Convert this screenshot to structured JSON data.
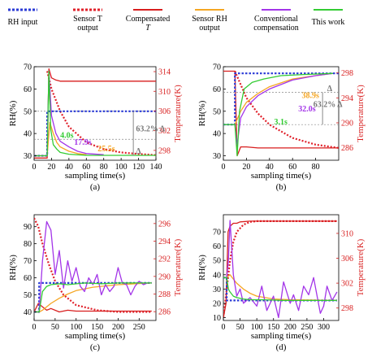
{
  "legend": [
    {
      "label": "RH input",
      "color": "#2b3bd6",
      "style": "dotted"
    },
    {
      "label": "Sensor T output",
      "color": "#e0202a",
      "style": "dotted",
      "italic_part": "T"
    },
    {
      "label": "Compensated T",
      "color": "#d81e1e",
      "style": "solid"
    },
    {
      "label": "Sensor RH output",
      "color": "#f5a623",
      "style": "solid"
    },
    {
      "label": "Conventional compensation",
      "color": "#a335e8",
      "style": "solid"
    },
    {
      "label": "This work",
      "color": "#33cc33",
      "style": "solid"
    }
  ],
  "chart_data": [
    {
      "type": "line",
      "panel": "a",
      "caption": "(a)",
      "xlabel": "sampling time(s)",
      "ylabel": "RH(%)",
      "y2label": "Temperature(K)",
      "xlim": [
        0,
        140
      ],
      "ylim": [
        28,
        70
      ],
      "y2lim": [
        296,
        315
      ],
      "xticks": [
        0,
        20,
        40,
        60,
        80,
        100,
        120,
        140
      ],
      "yticks": [
        30,
        40,
        50,
        60,
        70
      ],
      "y2ticks": [
        298,
        302,
        306,
        310,
        314
      ],
      "series": [
        {
          "key": "rh_input",
          "x": [
            0,
            15,
            15,
            140
          ],
          "y": [
            30,
            30,
            50,
            50
          ]
        },
        {
          "key": "sensor_t",
          "x": [
            15,
            20,
            30,
            40,
            60,
            80,
            100,
            120,
            140
          ],
          "y": [
            68,
            60,
            50,
            43,
            36,
            33,
            31.5,
            30.8,
            30.3
          ]
        },
        {
          "key": "comp_t",
          "x": [
            0,
            15,
            17,
            20,
            25,
            30,
            40,
            60,
            80,
            100,
            140
          ],
          "y": [
            29,
            29,
            69,
            65,
            64,
            63.5,
            63.5,
            63.5,
            63.5,
            63.5,
            63.5
          ]
        },
        {
          "key": "sensor_rh",
          "x": [
            0,
            15,
            18,
            22,
            26,
            30,
            40,
            50,
            60
          ],
          "y": [
            30,
            30,
            45,
            40,
            36,
            34,
            32,
            31,
            30.5
          ]
        },
        {
          "key": "conv",
          "x": [
            0,
            15,
            17,
            20,
            25,
            30,
            40,
            50,
            60,
            80
          ],
          "y": [
            30,
            30,
            68,
            48,
            40,
            36.5,
            34,
            32,
            31,
            30.5
          ]
        },
        {
          "key": "this_work",
          "x": [
            0,
            15,
            17,
            19,
            22,
            26,
            30,
            40,
            60,
            100,
            140
          ],
          "y": [
            30,
            30,
            68,
            42,
            35,
            33,
            31.5,
            30.7,
            30.2,
            30.2,
            30.2
          ]
        }
      ],
      "annotations": [
        {
          "text": "4.0s",
          "color": "#33cc33",
          "x": 30,
          "y": 38
        },
        {
          "text": "17.9s",
          "color": "#a335e8",
          "x": 46,
          "y": 35
        },
        {
          "text": "25.5s",
          "color": "#f5a623",
          "x": 73,
          "y": 32
        },
        {
          "text": "63.2% Δ",
          "color": "#777777",
          "x": 117,
          "y": 41
        },
        {
          "text": "Δ",
          "color": "#777777",
          "x": 117,
          "y": 31
        }
      ]
    },
    {
      "type": "line",
      "panel": "b",
      "caption": "(b)",
      "xlabel": "sampling time(s)",
      "ylabel": "RH(%)",
      "y2label": "Temperature(K)",
      "xlim": [
        0,
        100
      ],
      "ylim": [
        28,
        70
      ],
      "y2lim": [
        284,
        299
      ],
      "xticks": [
        0,
        20,
        40,
        60,
        80
      ],
      "yticks": [
        30,
        40,
        50,
        60,
        70
      ],
      "y2ticks": [
        286,
        290,
        294,
        298
      ],
      "series": [
        {
          "key": "rh_input",
          "x": [
            0,
            10,
            10,
            100
          ],
          "y": [
            44,
            44,
            67,
            67
          ]
        },
        {
          "key": "sensor_t",
          "x": [
            10,
            15,
            20,
            30,
            40,
            60,
            80,
            100
          ],
          "y": [
            68,
            62,
            56,
            49,
            44,
            38,
            35,
            33.5
          ]
        },
        {
          "key": "comp_t",
          "x": [
            0,
            10,
            12,
            15,
            20,
            30,
            50,
            100
          ],
          "y": [
            68,
            68,
            30,
            34,
            34,
            33.5,
            33.5,
            33.5
          ]
        },
        {
          "key": "sensor_rh",
          "x": [
            0,
            10,
            15,
            20,
            30,
            40,
            60,
            80,
            95
          ],
          "y": [
            44,
            44,
            50,
            54,
            58,
            61,
            64.5,
            66,
            67
          ]
        },
        {
          "key": "conv",
          "x": [
            0,
            10,
            12,
            15,
            20,
            30,
            40,
            60,
            80,
            95
          ],
          "y": [
            44,
            44,
            35,
            47,
            52,
            57,
            60,
            64,
            66,
            67
          ]
        },
        {
          "key": "this_work",
          "x": [
            0,
            10,
            12,
            14,
            18,
            25,
            35,
            50,
            70,
            95
          ],
          "y": [
            44,
            44,
            30,
            50,
            60,
            63,
            64.5,
            66,
            66.5,
            67
          ]
        }
      ],
      "annotations": [
        {
          "text": "3.1s",
          "color": "#33cc33",
          "x": 44,
          "y": 44
        },
        {
          "text": "32.0s",
          "color": "#a335e8",
          "x": 65,
          "y": 50
        },
        {
          "text": "38.9s",
          "color": "#f5a623",
          "x": 68,
          "y": 56
        },
        {
          "text": "63.2% Δ",
          "color": "#777777",
          "x": 78,
          "y": 52
        },
        {
          "text": "Δ",
          "color": "#777777",
          "x": 90,
          "y": 59
        }
      ]
    },
    {
      "type": "line",
      "panel": "c",
      "caption": "(c)",
      "xlabel": "sampling time(s)",
      "ylabel": "RH(%)",
      "y2label": "Temperature(K)",
      "xlim": [
        0,
        290
      ],
      "ylim": [
        35,
        97
      ],
      "y2lim": [
        285,
        297
      ],
      "xticks": [
        0,
        50,
        100,
        150,
        200,
        250
      ],
      "yticks": [
        40,
        50,
        60,
        70,
        80,
        90
      ],
      "y2ticks": [
        286,
        288,
        290,
        292,
        294,
        296
      ],
      "series": [
        {
          "key": "rh_input",
          "x": [
            0,
            12,
            12,
            280
          ],
          "y": [
            40,
            40,
            57,
            57
          ]
        },
        {
          "key": "sensor_t",
          "x": [
            0,
            10,
            20,
            35,
            50,
            70,
            100,
            150,
            200,
            280
          ],
          "y": [
            95,
            90,
            80,
            68,
            58,
            50,
            44,
            41,
            40,
            40
          ]
        },
        {
          "key": "comp_t",
          "x": [
            0,
            10,
            20,
            30,
            40,
            60,
            80,
            100,
            150,
            200,
            280
          ],
          "y": [
            40,
            45,
            43,
            41,
            42,
            40,
            41,
            40.5,
            40.5,
            40.5,
            40.5
          ]
        },
        {
          "key": "sensor_rh",
          "x": [
            0,
            12,
            20,
            40,
            60,
            80,
            100,
            140,
            200,
            280
          ],
          "y": [
            40,
            40,
            41,
            45,
            48,
            50.5,
            52.5,
            54.5,
            56,
            57
          ]
        },
        {
          "key": "conv",
          "x": [
            0,
            12,
            20,
            30,
            40,
            50,
            60,
            70,
            80,
            90,
            100,
            110,
            120,
            130,
            140,
            150,
            160,
            170,
            180,
            190,
            200,
            210,
            220,
            230,
            240,
            250,
            260,
            270,
            280
          ],
          "y": [
            40,
            40,
            70,
            93,
            88,
            62,
            76,
            54,
            70,
            58,
            66,
            55,
            52,
            60,
            56,
            62,
            50,
            56,
            52,
            55,
            66,
            57,
            56,
            50,
            55,
            58,
            56,
            57,
            57
          ]
        },
        {
          "key": "this_work",
          "x": [
            0,
            12,
            20,
            30,
            40,
            60,
            80,
            120,
            160,
            200,
            240,
            280
          ],
          "y": [
            40,
            40,
            52,
            55,
            56,
            56.5,
            56,
            57,
            56.5,
            57,
            57,
            57
          ]
        }
      ],
      "annotations": []
    },
    {
      "type": "line",
      "panel": "d",
      "caption": "(d)",
      "xlabel": "sampling time(s)",
      "ylabel": "RH(%)",
      "y2label": "Temperature(K)",
      "xlim": [
        0,
        345
      ],
      "ylim": [
        8,
        82
      ],
      "y2lim": [
        296,
        313
      ],
      "xticks": [
        0,
        50,
        100,
        150,
        200,
        250,
        300
      ],
      "yticks": [
        10,
        20,
        30,
        40,
        50,
        60,
        70
      ],
      "y2ticks": [
        298,
        302,
        306,
        310
      ],
      "series": [
        {
          "key": "rh_input",
          "x": [
            0,
            10,
            10,
            340
          ],
          "y": [
            38,
            38,
            22,
            22
          ]
        },
        {
          "key": "sensor_t",
          "x": [
            0,
            10,
            20,
            30,
            40,
            60,
            80,
            100,
            150,
            200,
            340
          ],
          "y": [
            10,
            30,
            50,
            63,
            70,
            75,
            77,
            77.5,
            77.5,
            77.5,
            77.5
          ]
        },
        {
          "key": "comp_t",
          "x": [
            0,
            8,
            14,
            20,
            30,
            40,
            50,
            80,
            100,
            150,
            200,
            340
          ],
          "y": [
            10,
            20,
            70,
            74,
            76,
            76,
            77,
            77.5,
            77.5,
            77.5,
            77.5,
            77.5
          ]
        },
        {
          "key": "sensor_rh",
          "x": [
            0,
            10,
            20,
            30,
            40,
            60,
            80,
            100,
            150,
            200,
            340
          ],
          "y": [
            38,
            38,
            40,
            37,
            34,
            30,
            27,
            25,
            23,
            22.5,
            22
          ]
        },
        {
          "key": "conv",
          "x": [
            0,
            10,
            15,
            20,
            30,
            40,
            50,
            60,
            80,
            100,
            115,
            130,
            150,
            165,
            180,
            200,
            210,
            225,
            240,
            255,
            270,
            290,
            300,
            310,
            325,
            340
          ],
          "y": [
            38,
            38,
            50,
            78,
            40,
            25,
            30,
            20,
            24,
            18,
            32,
            15,
            25,
            10,
            35,
            20,
            26,
            15,
            32,
            26,
            38,
            13,
            18,
            32,
            22,
            28
          ]
        },
        {
          "key": "this_work",
          "x": [
            0,
            10,
            15,
            20,
            30,
            40,
            60,
            80,
            120,
            180,
            260,
            340
          ],
          "y": [
            38,
            38,
            30,
            28,
            25,
            24,
            23,
            22.5,
            22.5,
            22,
            22,
            22
          ]
        }
      ],
      "annotations": []
    }
  ]
}
